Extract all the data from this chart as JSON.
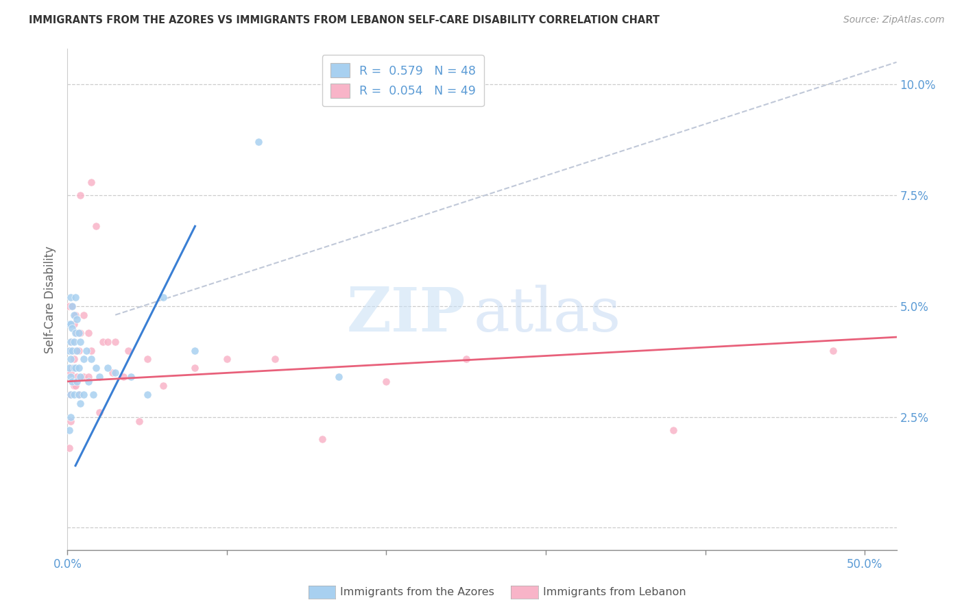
{
  "title": "IMMIGRANTS FROM THE AZORES VS IMMIGRANTS FROM LEBANON SELF-CARE DISABILITY CORRELATION CHART",
  "source": "Source: ZipAtlas.com",
  "ylabel": "Self-Care Disability",
  "xlim": [
    0.0,
    0.52
  ],
  "ylim": [
    -0.005,
    0.108
  ],
  "y_ticks": [
    0.0,
    0.025,
    0.05,
    0.075,
    0.1
  ],
  "y_tick_labels_right": [
    "",
    "2.5%",
    "5.0%",
    "7.5%",
    "10.0%"
  ],
  "x_ticks": [
    0.0,
    0.1,
    0.2,
    0.3,
    0.4,
    0.5
  ],
  "x_tick_labels": [
    "0.0%",
    "",
    "",
    "",
    "",
    "50.0%"
  ],
  "color_azores": "#a8d0f0",
  "color_lebanon": "#f8b4c8",
  "color_azores_line": "#3a7fd4",
  "color_lebanon_line": "#e8607a",
  "color_diag": "#c0c8d8",
  "color_axis_ticks": "#5b9bd5",
  "color_title": "#333333",
  "color_source": "#999999",
  "color_ylabel": "#666666",
  "color_bottom_label": "#555555",
  "marker_size": 65,
  "azores_points": [
    [
      0.001,
      0.046
    ],
    [
      0.001,
      0.04
    ],
    [
      0.001,
      0.036
    ],
    [
      0.001,
      0.022
    ],
    [
      0.002,
      0.052
    ],
    [
      0.002,
      0.046
    ],
    [
      0.002,
      0.042
    ],
    [
      0.002,
      0.038
    ],
    [
      0.002,
      0.034
    ],
    [
      0.002,
      0.03
    ],
    [
      0.002,
      0.025
    ],
    [
      0.003,
      0.05
    ],
    [
      0.003,
      0.045
    ],
    [
      0.003,
      0.04
    ],
    [
      0.003,
      0.033
    ],
    [
      0.004,
      0.048
    ],
    [
      0.004,
      0.042
    ],
    [
      0.004,
      0.036
    ],
    [
      0.004,
      0.03
    ],
    [
      0.005,
      0.052
    ],
    [
      0.005,
      0.044
    ],
    [
      0.005,
      0.036
    ],
    [
      0.006,
      0.047
    ],
    [
      0.006,
      0.04
    ],
    [
      0.006,
      0.033
    ],
    [
      0.007,
      0.044
    ],
    [
      0.007,
      0.036
    ],
    [
      0.007,
      0.03
    ],
    [
      0.008,
      0.042
    ],
    [
      0.008,
      0.034
    ],
    [
      0.008,
      0.028
    ],
    [
      0.01,
      0.038
    ],
    [
      0.01,
      0.03
    ],
    [
      0.012,
      0.04
    ],
    [
      0.013,
      0.033
    ],
    [
      0.015,
      0.038
    ],
    [
      0.016,
      0.03
    ],
    [
      0.018,
      0.036
    ],
    [
      0.02,
      0.034
    ],
    [
      0.025,
      0.036
    ],
    [
      0.03,
      0.035
    ],
    [
      0.04,
      0.034
    ],
    [
      0.05,
      0.03
    ],
    [
      0.06,
      0.052
    ],
    [
      0.08,
      0.04
    ],
    [
      0.12,
      0.087
    ],
    [
      0.17,
      0.034
    ]
  ],
  "lebanon_points": [
    [
      0.001,
      0.018
    ],
    [
      0.001,
      0.05
    ],
    [
      0.002,
      0.046
    ],
    [
      0.002,
      0.04
    ],
    [
      0.002,
      0.035
    ],
    [
      0.002,
      0.03
    ],
    [
      0.002,
      0.024
    ],
    [
      0.003,
      0.05
    ],
    [
      0.003,
      0.042
    ],
    [
      0.003,
      0.036
    ],
    [
      0.004,
      0.046
    ],
    [
      0.004,
      0.038
    ],
    [
      0.004,
      0.032
    ],
    [
      0.005,
      0.048
    ],
    [
      0.005,
      0.04
    ],
    [
      0.005,
      0.032
    ],
    [
      0.006,
      0.044
    ],
    [
      0.006,
      0.034
    ],
    [
      0.007,
      0.04
    ],
    [
      0.007,
      0.03
    ],
    [
      0.008,
      0.075
    ],
    [
      0.008,
      0.044
    ],
    [
      0.01,
      0.048
    ],
    [
      0.01,
      0.034
    ],
    [
      0.013,
      0.044
    ],
    [
      0.013,
      0.034
    ],
    [
      0.015,
      0.078
    ],
    [
      0.015,
      0.04
    ],
    [
      0.018,
      0.068
    ],
    [
      0.02,
      0.026
    ],
    [
      0.022,
      0.042
    ],
    [
      0.025,
      0.042
    ],
    [
      0.028,
      0.035
    ],
    [
      0.03,
      0.042
    ],
    [
      0.035,
      0.034
    ],
    [
      0.038,
      0.04
    ],
    [
      0.045,
      0.024
    ],
    [
      0.05,
      0.038
    ],
    [
      0.06,
      0.032
    ],
    [
      0.08,
      0.036
    ],
    [
      0.1,
      0.038
    ],
    [
      0.13,
      0.038
    ],
    [
      0.16,
      0.02
    ],
    [
      0.2,
      0.033
    ],
    [
      0.25,
      0.038
    ],
    [
      0.38,
      0.022
    ],
    [
      0.48,
      0.04
    ]
  ],
  "azores_line_x": [
    0.005,
    0.08
  ],
  "azores_line_y": [
    0.014,
    0.068
  ],
  "lebanon_line_x": [
    0.0,
    0.52
  ],
  "lebanon_line_y": [
    0.033,
    0.043
  ],
  "diag_line_x": [
    0.03,
    0.52
  ],
  "diag_line_y": [
    0.048,
    0.105
  ]
}
